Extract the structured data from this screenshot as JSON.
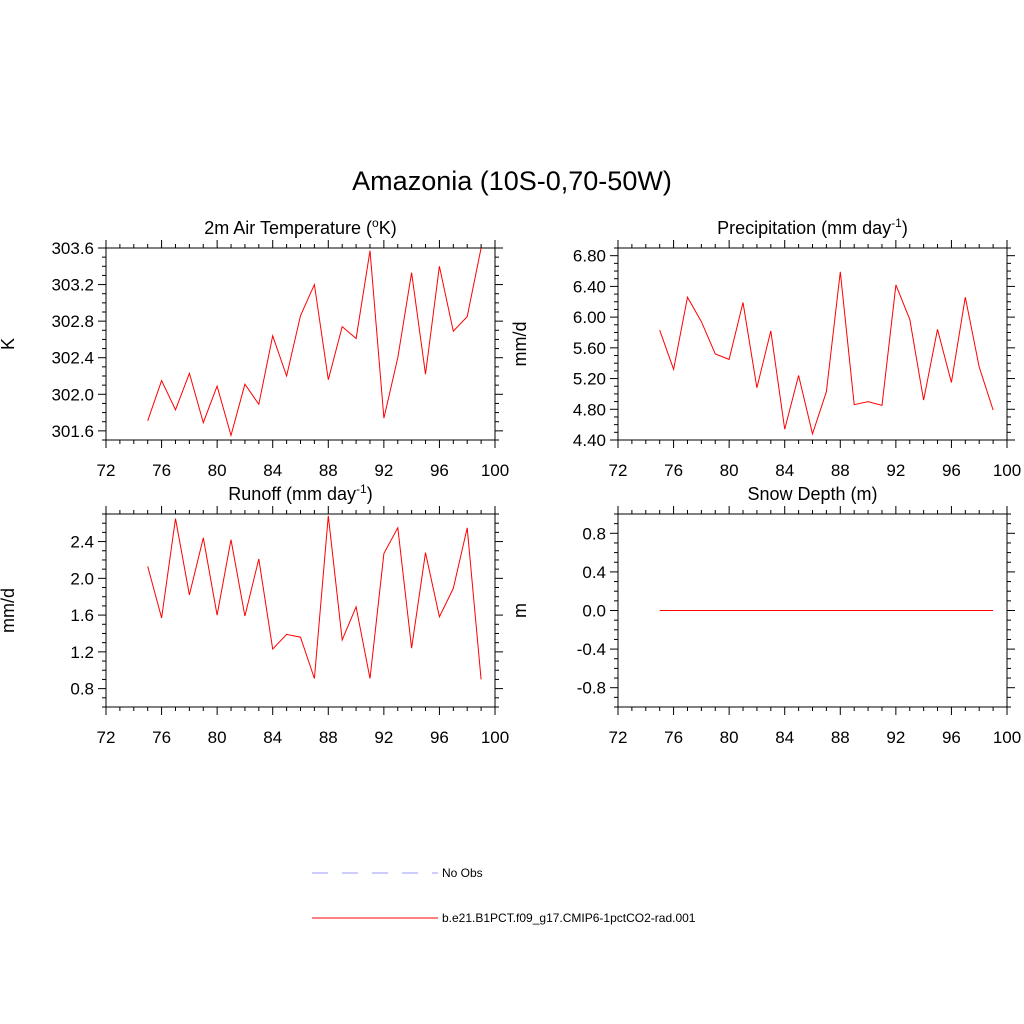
{
  "title": "Amazonia (10S-0,70-50W)",
  "legend": [
    {
      "label": "No Obs",
      "color": "#9999ff",
      "dash": true
    },
    {
      "label": "b.e21.B1PCT.f09_g17.CMIP6-1pctCO2-rad.001",
      "color": "#ff0000",
      "dash": false
    }
  ],
  "chart_data": [
    {
      "type": "line",
      "title": "2m Air Temperature (",
      "title_sup": "o",
      "title_end": "K)",
      "ylabel": "K",
      "xlim": [
        72,
        100
      ],
      "xticks": [
        "72",
        "76",
        "80",
        "84",
        "88",
        "92",
        "96",
        "100"
      ],
      "ylim": [
        301.5,
        303.6
      ],
      "yticks": [
        "301.6",
        "302.0",
        "302.4",
        "302.8",
        "303.2",
        "303.6"
      ],
      "line_color": "#ff0000",
      "x": [
        75,
        76,
        77,
        78,
        79,
        80,
        81,
        82,
        83,
        84,
        85,
        86,
        87,
        88,
        89,
        90,
        91,
        92,
        93,
        94,
        95,
        96,
        97,
        98,
        99
      ],
      "y": [
        301.71,
        302.15,
        301.83,
        302.23,
        301.69,
        302.09,
        301.55,
        302.11,
        301.89,
        302.64,
        302.2,
        302.86,
        303.2,
        302.16,
        302.74,
        302.61,
        303.57,
        301.74,
        302.4,
        303.33,
        302.22,
        303.4,
        302.69,
        302.85,
        303.6
      ]
    },
    {
      "type": "line",
      "title": "Precipitation (mm day",
      "title_sup": "-1",
      "title_end": ")",
      "ylabel": "mm/d",
      "xlim": [
        72,
        100
      ],
      "xticks": [
        "72",
        "76",
        "80",
        "84",
        "88",
        "92",
        "96",
        "100"
      ],
      "ylim": [
        4.4,
        6.9
      ],
      "yticks": [
        "4.40",
        "4.80",
        "5.20",
        "5.60",
        "6.00",
        "6.40",
        "6.80"
      ],
      "line_color": "#ff0000",
      "x": [
        75,
        76,
        77,
        78,
        79,
        80,
        81,
        82,
        83,
        84,
        85,
        86,
        87,
        88,
        89,
        90,
        91,
        92,
        93,
        94,
        95,
        96,
        97,
        98,
        99
      ],
      "y": [
        5.83,
        5.32,
        6.26,
        5.94,
        5.52,
        5.45,
        6.19,
        5.08,
        5.82,
        4.54,
        5.24,
        4.48,
        5.03,
        6.59,
        4.86,
        4.9,
        4.85,
        6.42,
        5.97,
        4.92,
        5.84,
        5.15,
        6.26,
        5.35,
        4.79
      ]
    },
    {
      "type": "line",
      "title": "Runoff (mm day",
      "title_sup": "-1",
      "title_end": ")",
      "ylabel": "mm/d",
      "xlim": [
        72,
        100
      ],
      "xticks": [
        "72",
        "76",
        "80",
        "84",
        "88",
        "92",
        "96",
        "100"
      ],
      "ylim": [
        0.6,
        2.7
      ],
      "yticks": [
        "0.8",
        "1.2",
        "1.6",
        "2.0",
        "2.4"
      ],
      "line_color": "#ff0000",
      "x": [
        75,
        76,
        77,
        78,
        79,
        80,
        81,
        82,
        83,
        84,
        85,
        86,
        87,
        88,
        89,
        90,
        91,
        92,
        93,
        94,
        95,
        96,
        97,
        98,
        99
      ],
      "y": [
        2.13,
        1.57,
        2.65,
        1.82,
        2.44,
        1.6,
        2.42,
        1.59,
        2.21,
        1.23,
        1.39,
        1.36,
        0.91,
        2.68,
        1.33,
        1.69,
        0.91,
        2.27,
        2.55,
        1.24,
        2.28,
        1.58,
        1.89,
        2.55,
        0.9
      ]
    },
    {
      "type": "line",
      "title": "Snow Depth (m)",
      "title_sup": "",
      "title_end": "",
      "ylabel": "m",
      "xlim": [
        72,
        100
      ],
      "xticks": [
        "72",
        "76",
        "80",
        "84",
        "88",
        "92",
        "96",
        "100"
      ],
      "ylim": [
        -1.0,
        1.0
      ],
      "yticks": [
        "-0.8",
        "-0.4",
        "0.0",
        "0.4",
        "0.8"
      ],
      "line_color": "#ff0000",
      "x": [
        75,
        76,
        77,
        78,
        79,
        80,
        81,
        82,
        83,
        84,
        85,
        86,
        87,
        88,
        89,
        90,
        91,
        92,
        93,
        94,
        95,
        96,
        97,
        98,
        99
      ],
      "y": [
        0,
        0,
        0,
        0,
        0,
        0,
        0,
        0,
        0,
        0,
        0,
        0,
        0,
        0,
        0,
        0,
        0,
        0,
        0,
        0,
        0,
        0,
        0,
        0,
        0
      ]
    }
  ]
}
